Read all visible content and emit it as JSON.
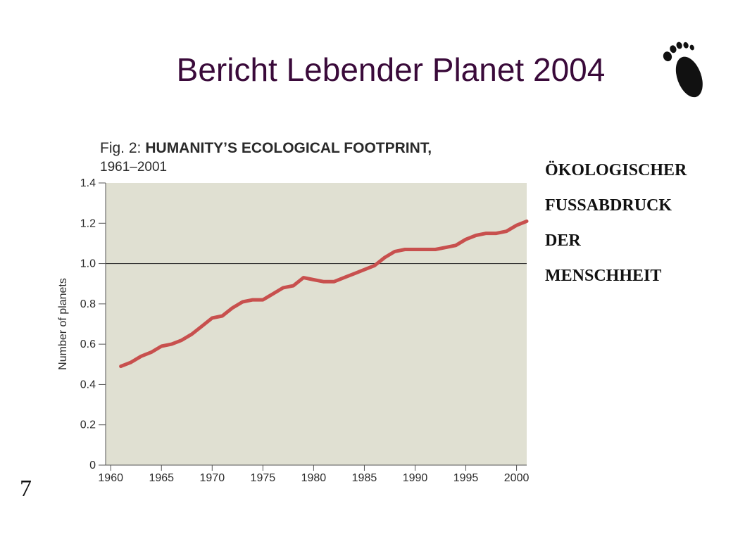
{
  "slide": {
    "title": "Bericht Lebender Planet 2004",
    "page_number": "7",
    "side_text": [
      "ÖKOLOGISCHER",
      "FUSSABDRUCK",
      "DER",
      "MENSCHHEIT"
    ],
    "icon": "footprint-icon"
  },
  "chart_data": {
    "type": "line",
    "title_prefix": "Fig. 2:",
    "title_main": "HUMANITY’S ECOLOGICAL FOOTPRINT,",
    "subtitle": "1961–2001",
    "xlabel": "",
    "ylabel": "Number of planets",
    "xlim": [
      1959.5,
      2001
    ],
    "ylim": [
      0,
      1.4
    ],
    "x_ticks": [
      1960,
      1965,
      1970,
      1975,
      1980,
      1985,
      1990,
      1995,
      2000
    ],
    "y_ticks": [
      0,
      0.2,
      0.4,
      0.6,
      0.8,
      1.0,
      1.2,
      1.4
    ],
    "y_tick_labels": [
      "0",
      "0.2",
      "0.4",
      "0.6",
      "0.8",
      "1.0",
      "1.2",
      "1.4"
    ],
    "reference_line": 1.0,
    "colors": {
      "plot_bg": "#e0e0d2",
      "line": "#c8504e",
      "reference": "#333333"
    },
    "series": [
      {
        "x": [
          1961,
          1962,
          1963,
          1964,
          1965,
          1966,
          1967,
          1968,
          1969,
          1970,
          1971,
          1972,
          1973,
          1974,
          1975,
          1976,
          1977,
          1978,
          1979,
          1980,
          1981,
          1982,
          1983,
          1984,
          1985,
          1986,
          1987,
          1988,
          1989,
          1990,
          1991,
          1992,
          1993,
          1994,
          1995,
          1996,
          1997,
          1998,
          1999,
          2000,
          2001
        ],
        "y": [
          0.49,
          0.51,
          0.54,
          0.56,
          0.59,
          0.6,
          0.62,
          0.65,
          0.69,
          0.73,
          0.74,
          0.78,
          0.81,
          0.82,
          0.82,
          0.85,
          0.88,
          0.89,
          0.93,
          0.92,
          0.91,
          0.91,
          0.93,
          0.95,
          0.97,
          0.99,
          1.03,
          1.06,
          1.07,
          1.07,
          1.07,
          1.07,
          1.08,
          1.09,
          1.12,
          1.14,
          1.15,
          1.15,
          1.16,
          1.19,
          1.21
        ]
      }
    ]
  }
}
